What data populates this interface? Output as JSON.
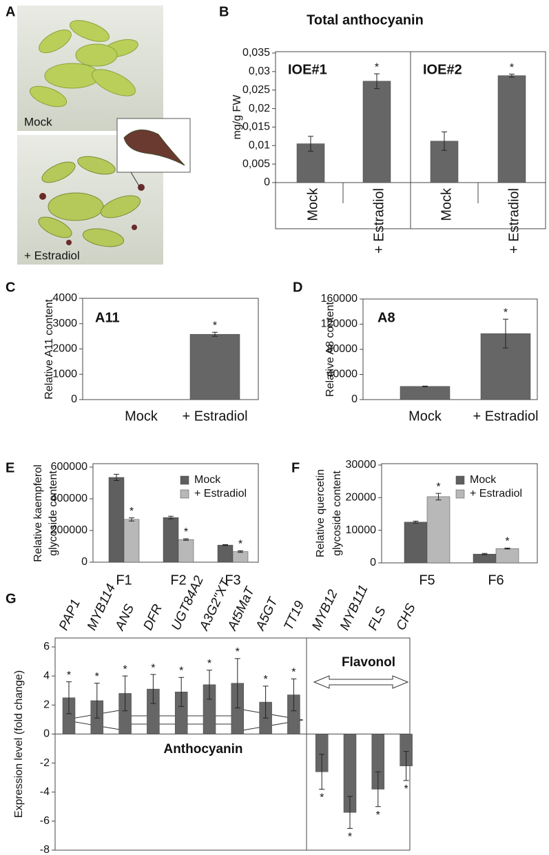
{
  "photo": {
    "panel": "A",
    "labels": [
      "Mock",
      "+ Estradiol"
    ]
  },
  "chart_data": [
    {
      "panel": "B",
      "type": "bar",
      "title": "Total anthocyanin",
      "ylabel": "mg/g FW",
      "color": "#666666",
      "sig_label": "*",
      "groups": [
        {
          "name": "IOE#1",
          "categories": [
            "Mock",
            "+ Estradiol"
          ],
          "values": [
            0.0105,
            0.0274
          ],
          "errors": [
            0.002,
            0.002
          ],
          "significant": [
            1
          ]
        },
        {
          "name": "IOE#2",
          "categories": [
            "Mock",
            "+ Estradiol"
          ],
          "values": [
            0.0112,
            0.0289
          ],
          "errors": [
            0.0025,
            0.0004
          ],
          "significant": [
            1
          ]
        }
      ],
      "ylim": [
        0,
        0.035
      ],
      "yticks": [
        0,
        {
          "value": 0.005,
          "label": "0,005"
        },
        {
          "value": 0.01,
          "label": "0,01"
        },
        {
          "value": 0.015,
          "label": "0,015"
        },
        {
          "value": 0.02,
          "label": "0,02"
        },
        {
          "value": 0.025,
          "label": "0,025"
        },
        {
          "value": 0.03,
          "label": "0,03"
        },
        {
          "value": 0.035,
          "label": "0,035"
        }
      ]
    },
    {
      "panel": "C",
      "type": "bar",
      "label": "A11",
      "ylabel": "Relative A11 content",
      "color": "#666666",
      "sig_label": "*",
      "categories": [
        "Mock",
        "+ Estradiol"
      ],
      "values": [
        0,
        2580
      ],
      "errors": [
        0,
        80
      ],
      "significant": [
        1
      ],
      "ylim": [
        0,
        4000
      ],
      "yticks": [
        0,
        1000,
        2000,
        3000,
        4000
      ]
    },
    {
      "panel": "D",
      "type": "bar",
      "label": "A8",
      "ylabel": "Relative A8 content",
      "color": "#666666",
      "sig_label": "*",
      "categories": [
        "Mock",
        "+ Estradiol"
      ],
      "values": [
        21000,
        105000
      ],
      "errors": [
        500,
        23000
      ],
      "significant": [
        1
      ],
      "ylim": [
        0,
        160000
      ],
      "yticks": [
        0,
        40000,
        80000,
        120000,
        160000
      ]
    },
    {
      "panel": "E",
      "type": "bar",
      "ylabel": [
        "Relative kaempferol",
        "glycoside content"
      ],
      "sig_label": "*",
      "legend": "upper right",
      "categories": [
        "F1",
        "F2",
        "F3"
      ],
      "series": [
        {
          "name": "Mock",
          "color": "#5f5f5f",
          "values": [
            535000,
            282000,
            108000
          ],
          "errors": [
            20000,
            8000,
            3000
          ],
          "significant": []
        },
        {
          "name": "+ Estradiol",
          "color": "#b8b8b8",
          "values": [
            270000,
            143000,
            67000
          ],
          "errors": [
            10000,
            5000,
            5000
          ],
          "significant": [
            0,
            1,
            2
          ]
        }
      ],
      "ylim": [
        0,
        600000
      ],
      "yticks": [
        0,
        200000,
        400000,
        600000
      ]
    },
    {
      "panel": "F",
      "type": "bar",
      "ylabel": [
        "Relative quercetin",
        "glycoside content"
      ],
      "sig_label": "*",
      "legend": "upper right",
      "categories": [
        "F5",
        "F6"
      ],
      "series": [
        {
          "name": "Mock",
          "color": "#5f5f5f",
          "values": [
            12500,
            2700
          ],
          "errors": [
            300,
            200
          ],
          "significant": []
        },
        {
          "name": "+ Estradiol",
          "color": "#b8b8b8",
          "values": [
            20300,
            4400
          ],
          "errors": [
            1000,
            150
          ],
          "significant": [
            0,
            1
          ]
        }
      ],
      "ylim": [
        0,
        30000
      ],
      "yticks": [
        0,
        10000,
        20000,
        30000
      ]
    },
    {
      "panel": "G",
      "type": "bar",
      "ylabel": "Expression level (fold change)",
      "color": "#666666",
      "sig_label": "*",
      "categories": [
        "PAP1",
        "MYB114",
        "ANS",
        "DFR",
        "UGT84A2",
        "A3G2\"XT",
        "At5MaT",
        "A5GT",
        "TT19",
        "MYB12",
        "MYB111",
        "FLS",
        "CHS"
      ],
      "values": [
        2.5,
        2.3,
        2.8,
        3.1,
        2.9,
        3.4,
        3.5,
        2.2,
        2.7,
        -2.6,
        -5.4,
        -3.8,
        -2.2
      ],
      "errors": [
        1.1,
        1.2,
        1.2,
        1.0,
        1.0,
        1.0,
        1.7,
        1.1,
        1.1,
        1.2,
        1.1,
        1.2,
        1.0
      ],
      "significant": [
        0,
        1,
        2,
        3,
        4,
        5,
        6,
        7,
        8,
        9,
        10,
        11,
        12
      ],
      "annotations": [
        "Flavonol",
        "Anthocyanin"
      ],
      "ylim": [
        -8,
        6
      ],
      "yticks": [
        -8,
        -6,
        -4,
        -2,
        0,
        2,
        4,
        6
      ]
    }
  ]
}
